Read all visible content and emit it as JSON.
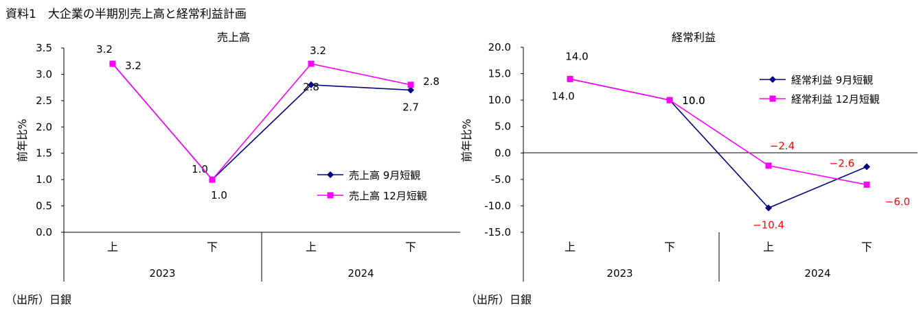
{
  "header": {
    "title": "資料1　大企業の半期別売上高と経常利益計画"
  },
  "colors": {
    "sep_series": "#000080",
    "dec_series": "#ff00ff",
    "negative_label": "#ff0000"
  },
  "chart_data": [
    {
      "type": "line",
      "title": "売上高",
      "ylabel": "前年比%",
      "ylim": [
        0.0,
        3.5
      ],
      "yticks": [
        "0.0",
        "0.5",
        "1.0",
        "1.5",
        "2.0",
        "2.5",
        "3.0",
        "3.5"
      ],
      "categories": [
        "上",
        "下",
        "上",
        "下"
      ],
      "year_groups": [
        "2023",
        "2024"
      ],
      "grid": false,
      "legend_position": "right",
      "series": [
        {
          "name": "売上高 9月短観",
          "marker": "diamond",
          "values": [
            3.2,
            1.0,
            2.8,
            2.7
          ],
          "labels": [
            "3.2",
            "1.0",
            "2.8",
            "2.7"
          ]
        },
        {
          "name": "売上高 12月短観",
          "marker": "square",
          "values": [
            3.2,
            1.0,
            3.2,
            2.8
          ],
          "labels": [
            "3.2",
            "1.0",
            "3.2",
            "2.8"
          ]
        }
      ],
      "source": "（出所）日銀"
    },
    {
      "type": "line",
      "title": "経常利益",
      "ylabel": "前年比%",
      "ylim": [
        -15.0,
        20.0
      ],
      "yticks": [
        "-15.0",
        "-10.0",
        "-5.0",
        "0.0",
        "5.0",
        "10.0",
        "15.0",
        "20.0"
      ],
      "categories": [
        "上",
        "下",
        "上",
        "下"
      ],
      "year_groups": [
        "2023",
        "2024"
      ],
      "grid": false,
      "legend_position": "top-right",
      "series": [
        {
          "name": "経常利益 9月短観",
          "marker": "diamond",
          "values": [
            14.0,
            10.0,
            -10.4,
            -2.6
          ],
          "labels": [
            "14.0",
            "10.0",
            "−10.4",
            "−2.6"
          ]
        },
        {
          "name": "経常利益 12月短観",
          "marker": "square",
          "values": [
            14.0,
            10.0,
            -2.4,
            -6.0
          ],
          "labels": [
            "14.0",
            "10.0",
            "−2.4",
            "−6.0"
          ]
        }
      ],
      "source": "（出所）日銀"
    }
  ]
}
